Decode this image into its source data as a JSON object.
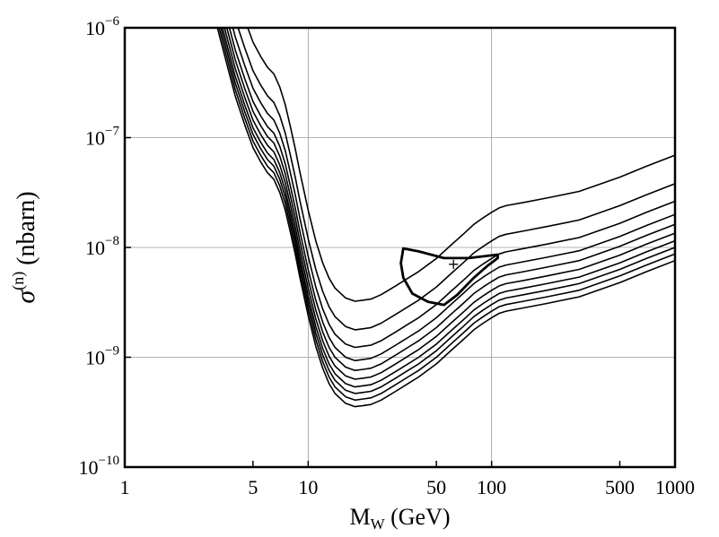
{
  "chart_data": {
    "type": "line",
    "title": "",
    "xlabel": {
      "main": "M",
      "sub": "W",
      "rest": " (GeV)"
    },
    "ylabel": {
      "main": "σ",
      "sup": "(n)",
      "rest": " (nbarn)"
    },
    "xscale": "log",
    "yscale": "log",
    "xlim": [
      1,
      1000
    ],
    "ylim": [
      1e-10,
      1e-06
    ],
    "grid": true,
    "legend": "none",
    "x_ticks": [
      {
        "value": 1,
        "label": "1"
      },
      {
        "value": 5,
        "label": "5"
      },
      {
        "value": 10,
        "label": "10"
      },
      {
        "value": 50,
        "label": "50"
      },
      {
        "value": 100,
        "label": "100"
      },
      {
        "value": 500,
        "label": "500"
      },
      {
        "value": 1000,
        "label": "1000"
      }
    ],
    "y_ticks": [
      {
        "value": 1e-06,
        "base": "10",
        "exp": "−6"
      },
      {
        "value": 1e-07,
        "base": "10",
        "exp": "−7"
      },
      {
        "value": 1e-08,
        "base": "10",
        "exp": "−8"
      },
      {
        "value": 1e-09,
        "base": "10",
        "exp": "−9"
      },
      {
        "value": 1e-10,
        "base": "10",
        "exp": "−10"
      }
    ],
    "x_gridlines": [
      10,
      100
    ],
    "y_gridlines": [
      1e-07,
      1e-08,
      1e-09
    ],
    "base_x": [
      3.2,
      3.6,
      4,
      4.5,
      5,
      5.5,
      6,
      6.5,
      7,
      7.5,
      8,
      8.5,
      9,
      10,
      11,
      12,
      13,
      14,
      16,
      18,
      20,
      22,
      25,
      30,
      35,
      40,
      50,
      60,
      70,
      80,
      90,
      100,
      110,
      120,
      150,
      200,
      300,
      500,
      700,
      1000
    ],
    "base_log10": [
      -6.0,
      -6.33,
      -6.62,
      -6.88,
      -7.09,
      -7.22,
      -7.32,
      -7.38,
      -7.5,
      -7.66,
      -7.86,
      -8.06,
      -8.27,
      -8.62,
      -8.9,
      -9.1,
      -9.24,
      -9.33,
      -9.42,
      -9.45,
      -9.44,
      -9.43,
      -9.39,
      -9.31,
      -9.24,
      -9.18,
      -9.06,
      -8.94,
      -8.84,
      -8.75,
      -8.69,
      -8.64,
      -8.6,
      -8.58,
      -8.55,
      -8.51,
      -8.45,
      -8.32,
      -8.22,
      -8.12
    ],
    "series": [
      {
        "name": "curve 1",
        "log10_offset": 0.96,
        "start_x": 3.5
      },
      {
        "name": "curve 2",
        "log10_offset": 0.7,
        "start_x": 3.4
      },
      {
        "name": "curve 3",
        "log10_offset": 0.54,
        "start_x": 3.35
      },
      {
        "name": "curve 4",
        "log10_offset": 0.42,
        "start_x": 3.3
      },
      {
        "name": "curve 5",
        "log10_offset": 0.33,
        "start_x": 3.25
      },
      {
        "name": "curve 6",
        "log10_offset": 0.25,
        "start_x": 3.2
      },
      {
        "name": "curve 7",
        "log10_offset": 0.18,
        "start_x": 3.2
      },
      {
        "name": "curve 8",
        "log10_offset": 0.12,
        "start_x": 3.2
      },
      {
        "name": "curve 9",
        "log10_offset": 0.06,
        "start_x": 3.2
      },
      {
        "name": "curve 10",
        "log10_offset": 0.0,
        "start_x": 3.2
      }
    ],
    "contour": {
      "name": "closed contour",
      "points": [
        [
          33,
          9.8e-09
        ],
        [
          40,
          9.2e-09
        ],
        [
          55,
          8e-09
        ],
        [
          75,
          8e-09
        ],
        [
          108,
          8.6e-09
        ],
        [
          108,
          8e-09
        ],
        [
          95,
          6.8e-09
        ],
        [
          80,
          5.3e-09
        ],
        [
          65,
          3.7e-09
        ],
        [
          55,
          3e-09
        ],
        [
          45,
          3.2e-09
        ],
        [
          37,
          3.8e-09
        ],
        [
          33,
          5.3e-09
        ],
        [
          32,
          7.2e-09
        ],
        [
          33,
          9.8e-09
        ]
      ]
    },
    "marker": {
      "name": "best-fit point",
      "x": 62,
      "y": 7e-09,
      "symbol": "+"
    }
  }
}
